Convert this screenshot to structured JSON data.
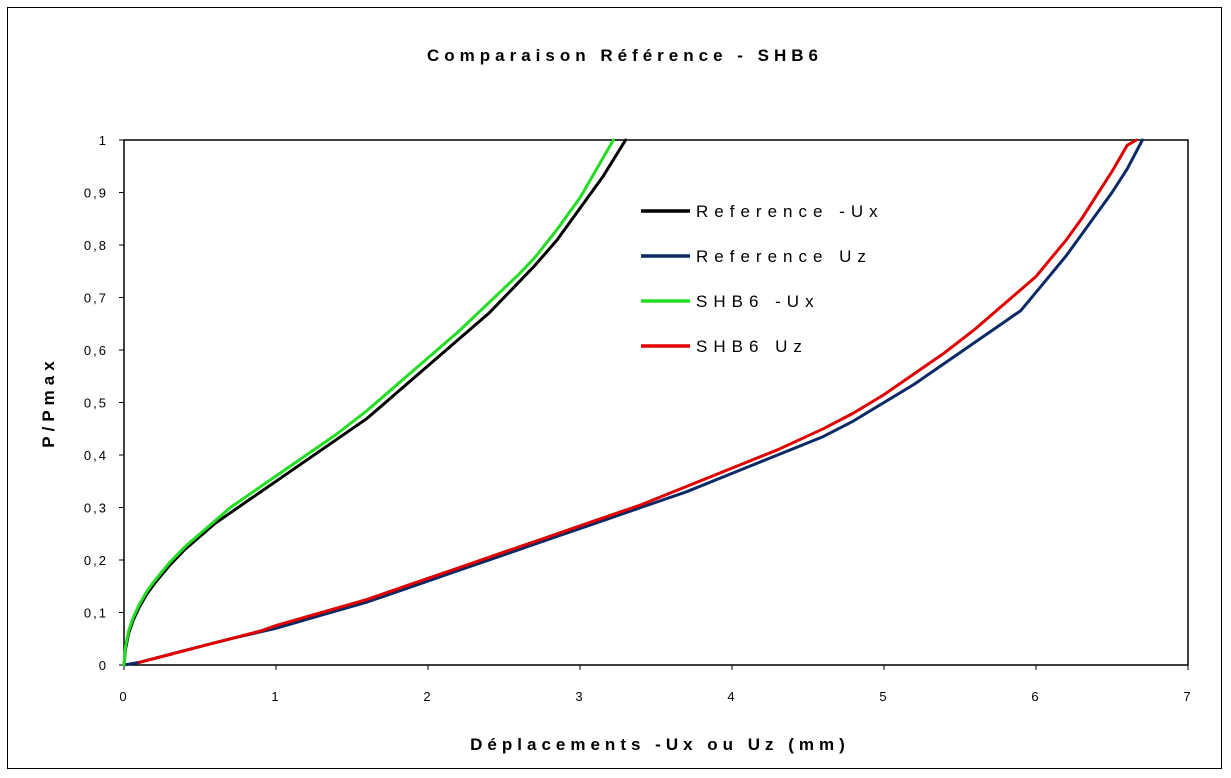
{
  "chart_data": {
    "type": "line",
    "title": "Comparaison Référence - SHB6",
    "xlabel": "Déplacements -Ux ou Uz (mm)",
    "ylabel": "P/Pmax",
    "xlim": [
      0,
      7
    ],
    "ylim": [
      0,
      1
    ],
    "xticks": [
      "0",
      "1",
      "2",
      "3",
      "4",
      "5",
      "6",
      "7"
    ],
    "yticks": [
      "0",
      "0,1",
      "0,2",
      "0,3",
      "0,4",
      "0,5",
      "0,6",
      "0,7",
      "0,8",
      "0,9",
      "1"
    ],
    "grid": false,
    "legend_position": "top-center",
    "series": [
      {
        "name": "Reference -Ux",
        "color": "#000000",
        "x": [
          0,
          0.01,
          0.03,
          0.06,
          0.1,
          0.15,
          0.2,
          0.3,
          0.4,
          0.5,
          0.6,
          0.7,
          0.85,
          1.0,
          1.2,
          1.4,
          1.6,
          1.8,
          2.0,
          2.2,
          2.4,
          2.6,
          2.7,
          2.85,
          3.0,
          3.15,
          3.3
        ],
        "y": [
          0,
          0.03,
          0.06,
          0.085,
          0.11,
          0.135,
          0.155,
          0.19,
          0.22,
          0.245,
          0.27,
          0.29,
          0.32,
          0.35,
          0.39,
          0.43,
          0.47,
          0.52,
          0.57,
          0.62,
          0.67,
          0.73,
          0.76,
          0.81,
          0.87,
          0.93,
          1.0
        ]
      },
      {
        "name": "Reference Uz",
        "color": "#0a2a66",
        "x": [
          0,
          0.1,
          0.3,
          0.5,
          0.7,
          1.0,
          1.3,
          1.6,
          1.9,
          2.2,
          2.5,
          2.8,
          3.1,
          3.4,
          3.7,
          4.0,
          4.3,
          4.6,
          4.8,
          5.0,
          5.2,
          5.4,
          5.6,
          5.8,
          5.9,
          6.0,
          6.1,
          6.2,
          6.3,
          6.4,
          6.5,
          6.6,
          6.7
        ],
        "y": [
          0,
          0.005,
          0.02,
          0.035,
          0.05,
          0.07,
          0.095,
          0.12,
          0.15,
          0.18,
          0.21,
          0.24,
          0.27,
          0.3,
          0.33,
          0.365,
          0.4,
          0.435,
          0.465,
          0.5,
          0.535,
          0.575,
          0.615,
          0.655,
          0.675,
          0.71,
          0.745,
          0.78,
          0.82,
          0.86,
          0.9,
          0.945,
          1.0
        ]
      },
      {
        "name": "SHB6 -Ux",
        "color": "#22dd22",
        "x": [
          0,
          0.01,
          0.03,
          0.06,
          0.1,
          0.15,
          0.2,
          0.3,
          0.4,
          0.5,
          0.6,
          0.7,
          0.85,
          1.0,
          1.2,
          1.4,
          1.6,
          1.8,
          2.0,
          2.2,
          2.4,
          2.6,
          2.7,
          2.85,
          3.0,
          3.1,
          3.22
        ],
        "y": [
          0,
          0.035,
          0.065,
          0.09,
          0.115,
          0.14,
          0.16,
          0.195,
          0.225,
          0.25,
          0.275,
          0.3,
          0.33,
          0.36,
          0.4,
          0.44,
          0.485,
          0.535,
          0.585,
          0.635,
          0.69,
          0.745,
          0.775,
          0.83,
          0.89,
          0.94,
          1.0
        ]
      },
      {
        "name": "SHB6 Uz",
        "color": "#e00000",
        "x": [
          0.1,
          0.3,
          0.5,
          0.7,
          0.9,
          1.0,
          1.3,
          1.6,
          1.9,
          2.2,
          2.5,
          2.8,
          3.1,
          3.4,
          3.7,
          4.0,
          4.3,
          4.6,
          4.8,
          5.0,
          5.2,
          5.4,
          5.6,
          5.8,
          6.0,
          6.1,
          6.2,
          6.3,
          6.4,
          6.5,
          6.6,
          6.66
        ],
        "y": [
          0.005,
          0.02,
          0.035,
          0.05,
          0.065,
          0.075,
          0.1,
          0.125,
          0.155,
          0.185,
          0.215,
          0.245,
          0.275,
          0.305,
          0.34,
          0.375,
          0.41,
          0.45,
          0.48,
          0.515,
          0.555,
          0.595,
          0.64,
          0.69,
          0.74,
          0.775,
          0.81,
          0.85,
          0.895,
          0.94,
          0.99,
          1.0
        ]
      }
    ]
  }
}
